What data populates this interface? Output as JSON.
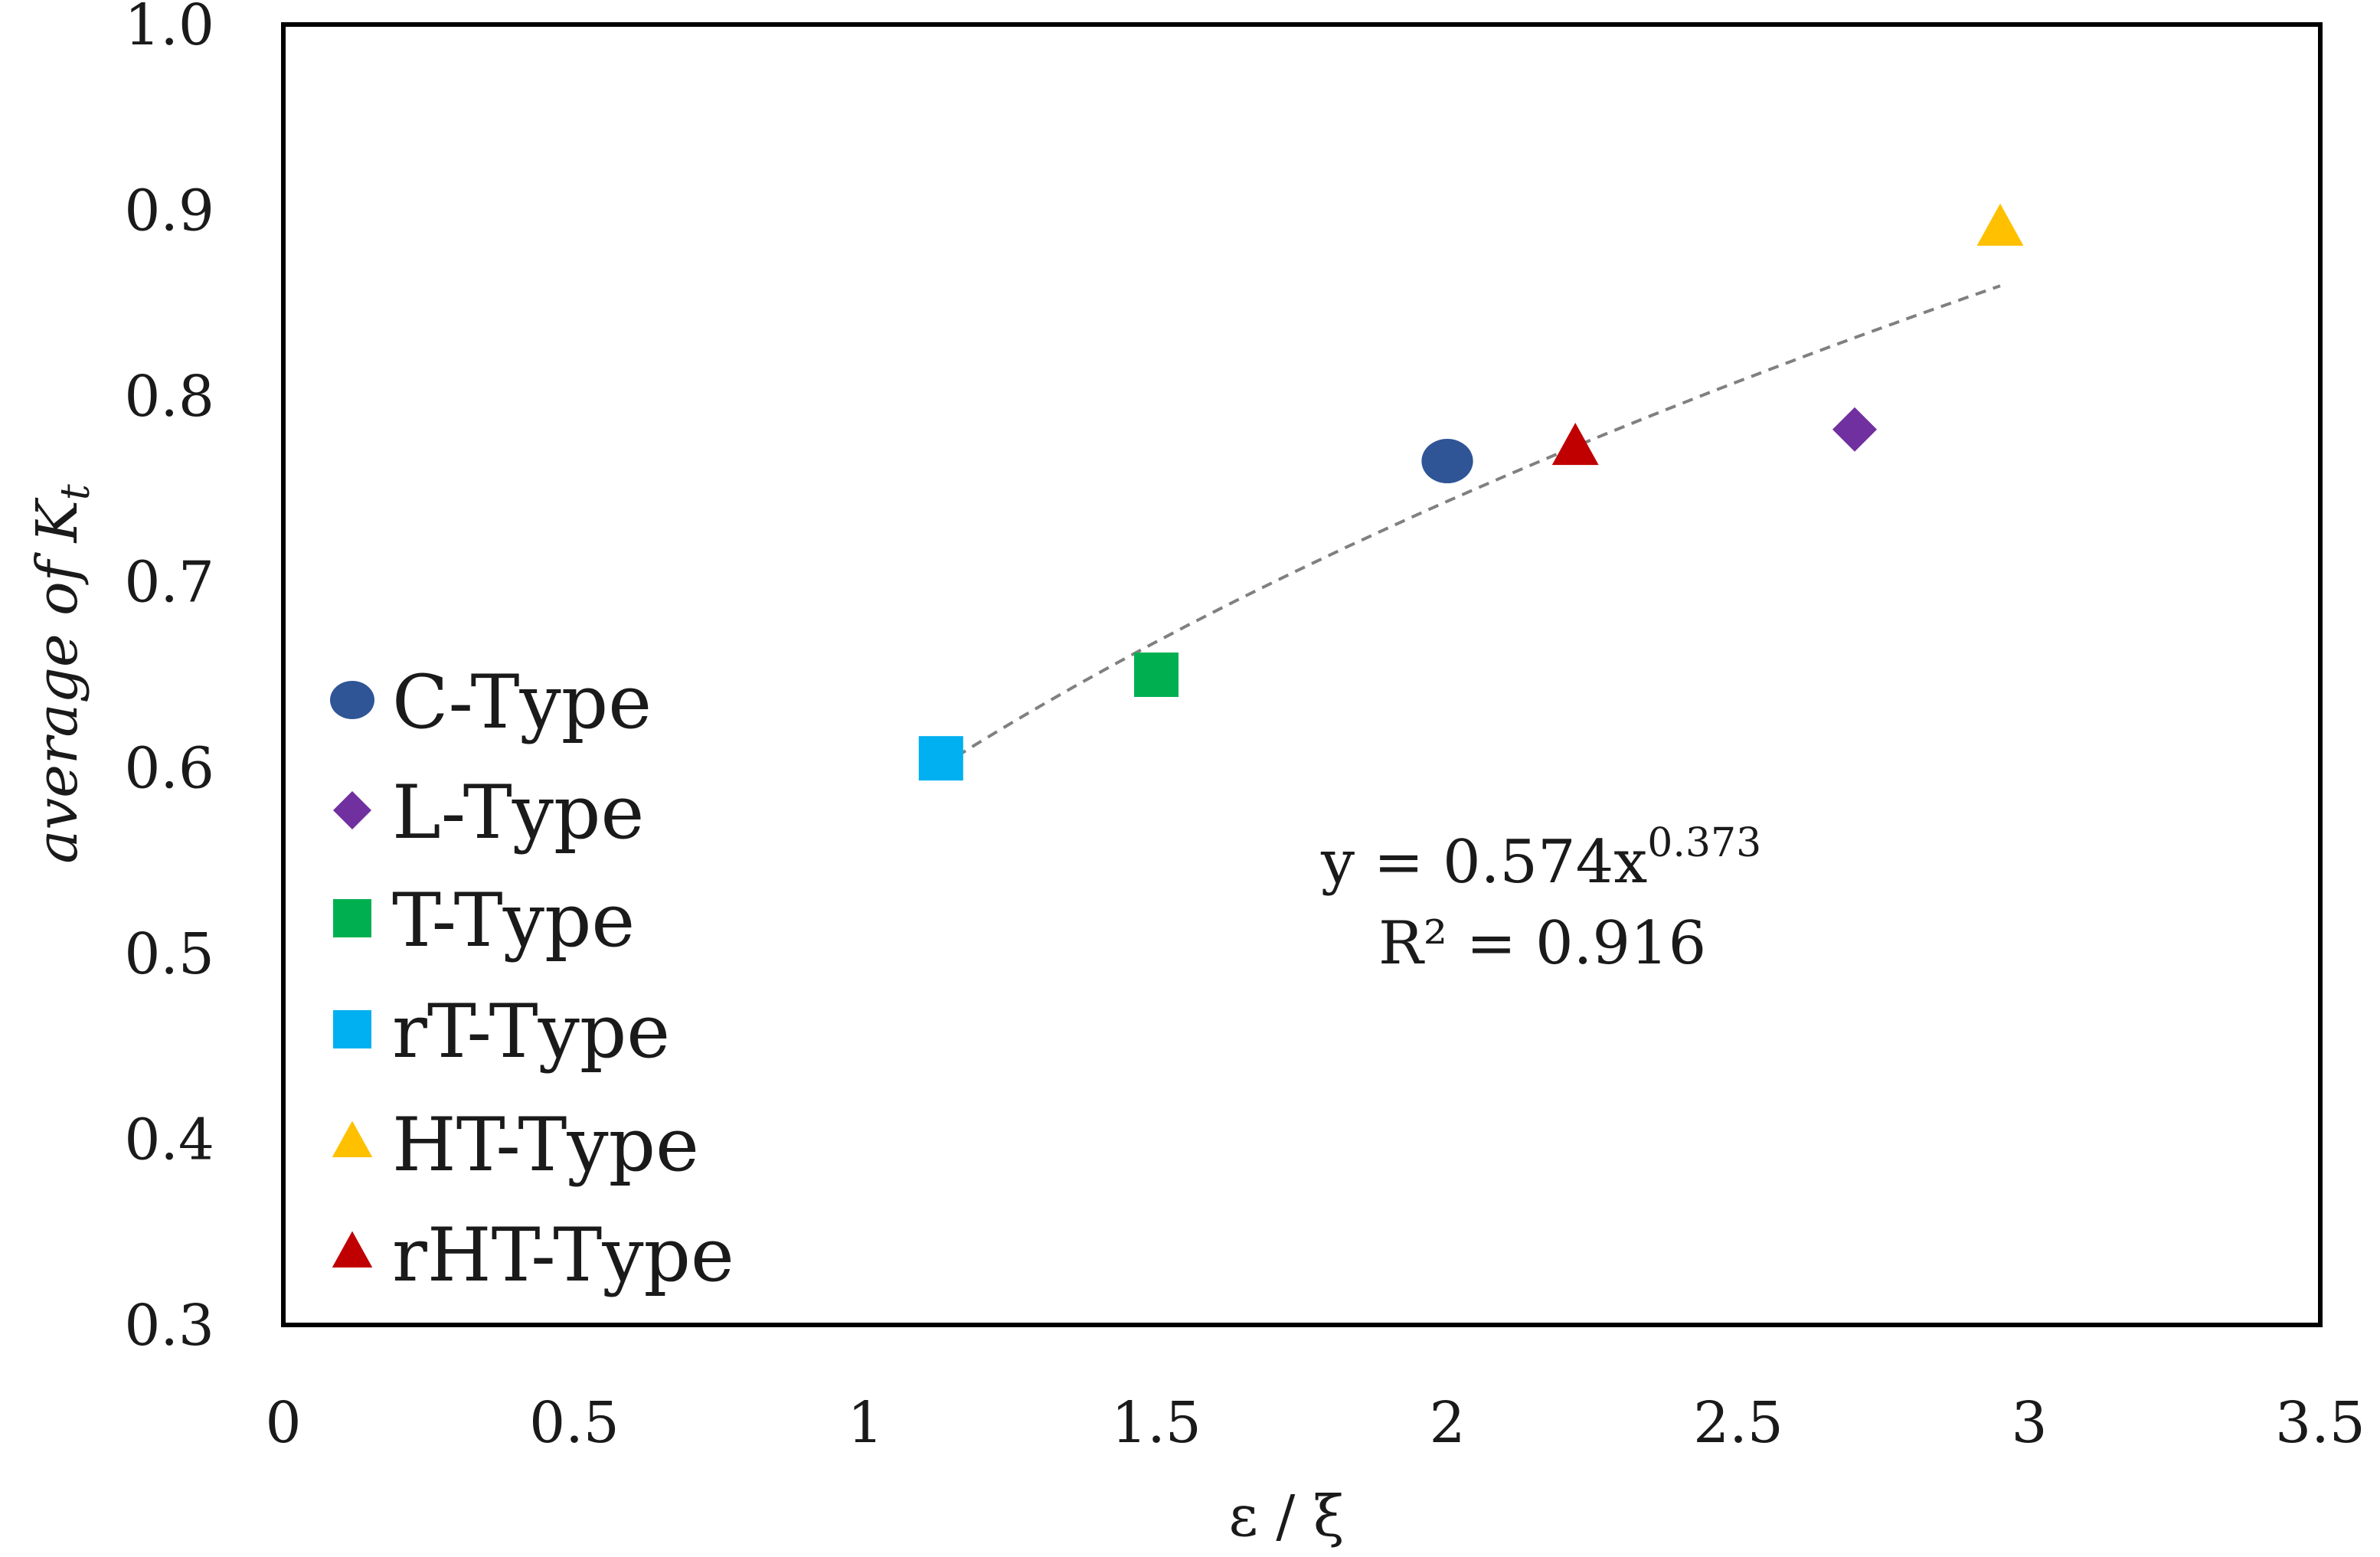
{
  "chart_data": {
    "type": "scatter",
    "title": "",
    "xlabel": "ε / ξ",
    "ylabel": "average of K",
    "ylabel_subscript": "t",
    "xlim": [
      0,
      3.5
    ],
    "ylim": [
      0.3,
      1.0
    ],
    "xticks": [
      "0",
      "0.5",
      "1",
      "1.5",
      "2",
      "2.5",
      "3",
      "3.5"
    ],
    "yticks": [
      "0.3",
      "0.4",
      "0.5",
      "0.6",
      "0.7",
      "0.8",
      "0.9",
      "1.0"
    ],
    "xtick_values": [
      0,
      0.5,
      1,
      1.5,
      2,
      2.5,
      3,
      3.5
    ],
    "ytick_values": [
      0.3,
      0.4,
      0.5,
      0.6,
      0.7,
      0.8,
      0.9,
      1.0
    ],
    "grid": false,
    "legend_position": "left",
    "series": [
      {
        "name": "C-Type",
        "marker": "circle",
        "color": "#2f5597",
        "x": [
          2.0
        ],
        "y": [
          0.765
        ]
      },
      {
        "name": "L-Type",
        "marker": "diamond",
        "color": "#7030a0",
        "x": [
          2.7
        ],
        "y": [
          0.782
        ]
      },
      {
        "name": "T-Type",
        "marker": "square",
        "color": "#00b050",
        "x": [
          1.5
        ],
        "y": [
          0.65
        ]
      },
      {
        "name": "rT-Type",
        "marker": "square",
        "color": "#00b0f0",
        "x": [
          1.13
        ],
        "y": [
          0.605
        ]
      },
      {
        "name": "HT-Type",
        "marker": "triangle",
        "color": "#ffc000",
        "x": [
          2.95
        ],
        "y": [
          0.89
        ]
      },
      {
        "name": "rHT-Type",
        "marker": "triangle",
        "color": "#c00000",
        "x": [
          2.22
        ],
        "y": [
          0.772
        ]
      }
    ],
    "trendline": {
      "type": "power",
      "a": 0.574,
      "b": 0.373,
      "x_range": [
        1.13,
        2.95
      ],
      "color": "#808080",
      "equation_prefix": "y = 0.574x",
      "equation_exponent": "0.373",
      "r_squared_label": "R² = 0.916"
    }
  }
}
